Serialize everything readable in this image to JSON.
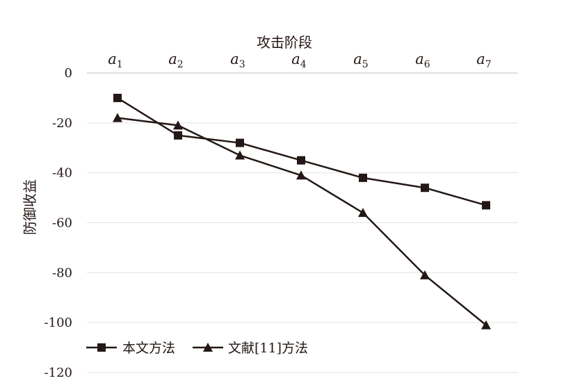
{
  "chart_data": {
    "type": "line",
    "title": "",
    "xlabel": "攻击阶段",
    "ylabel": "防御收益",
    "x_axis_position": "top",
    "categories": [
      {
        "base": "a",
        "sub": "1"
      },
      {
        "base": "a",
        "sub": "2"
      },
      {
        "base": "a",
        "sub": "3"
      },
      {
        "base": "a",
        "sub": "4"
      },
      {
        "base": "a",
        "sub": "5"
      },
      {
        "base": "a",
        "sub": "6"
      },
      {
        "base": "a",
        "sub": "7"
      }
    ],
    "ylim": [
      -120,
      0
    ],
    "yticks": [
      "0",
      "-20",
      "-40",
      "-60",
      "-80",
      "-100",
      "-120"
    ],
    "grid": true,
    "legend_position": "bottom-left",
    "series": [
      {
        "name": "本文方法",
        "marker": "square",
        "color": "#231815",
        "values": [
          -10,
          -25,
          -28,
          -35,
          -42,
          -46,
          -53
        ]
      },
      {
        "name": "文献[11]方法",
        "marker": "triangle",
        "color": "#231815",
        "values": [
          -18,
          -21,
          -33,
          -41,
          -56,
          -81,
          -101
        ]
      }
    ]
  }
}
